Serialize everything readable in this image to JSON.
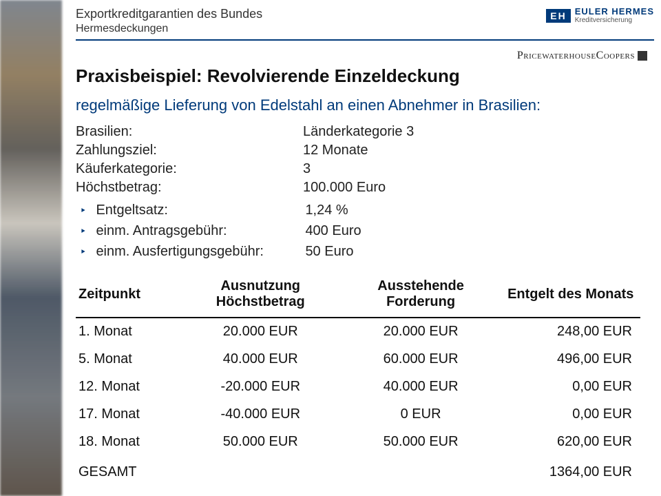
{
  "header": {
    "line1": "Exportkreditgarantien des Bundes",
    "line2": "Hermesdeckungen",
    "logo_eh_mark": "EH",
    "logo_eh_name": "EULER HERMES",
    "logo_eh_sub": "Kreditversicherung",
    "pwc_text": "PricewaterhouseCoopers"
  },
  "colors": {
    "accent": "#003a7a",
    "text": "#222222",
    "rule": "#003a7a"
  },
  "title": "Praxisbeispiel: Revolvierende Einzeldeckung",
  "subtitle": "regelmäßige Lieferung von Edelstahl an einen Abnehmer in Brasilien:",
  "params": [
    {
      "k": "Brasilien:",
      "v": "Länderkategorie 3"
    },
    {
      "k": "Zahlungsziel:",
      "v": "12 Monate"
    },
    {
      "k": "Käuferkategorie:",
      "v": "3"
    },
    {
      "k": "Höchstbetrag:",
      "v": "100.000 Euro"
    }
  ],
  "fees": [
    {
      "k": "Entgeltsatz:",
      "v": "1,24 %"
    },
    {
      "k": "einm. Antragsgebühr:",
      "v": "400 Euro"
    },
    {
      "k": "einm. Ausfertigungsgebühr:",
      "v": "50 Euro"
    }
  ],
  "table": {
    "columns": [
      "Zeitpunkt",
      "Ausnutzung Höchstbetrag",
      "Ausstehende Forderung",
      "Entgelt des Monats"
    ],
    "rows": [
      [
        "1. Monat",
        "20.000 EUR",
        "20.000 EUR",
        "248,00 EUR"
      ],
      [
        "5. Monat",
        "40.000 EUR",
        "60.000 EUR",
        "496,00 EUR"
      ],
      [
        "12. Monat",
        "-20.000 EUR",
        "40.000 EUR",
        "0,00 EUR"
      ],
      [
        "17. Monat",
        "-40.000 EUR",
        "0 EUR",
        "0,00 EUR"
      ],
      [
        "18. Monat",
        "50.000 EUR",
        "50.000 EUR",
        "620,00 EUR"
      ],
      [
        "GESAMT",
        "",
        "",
        "1364,00 EUR"
      ]
    ]
  }
}
